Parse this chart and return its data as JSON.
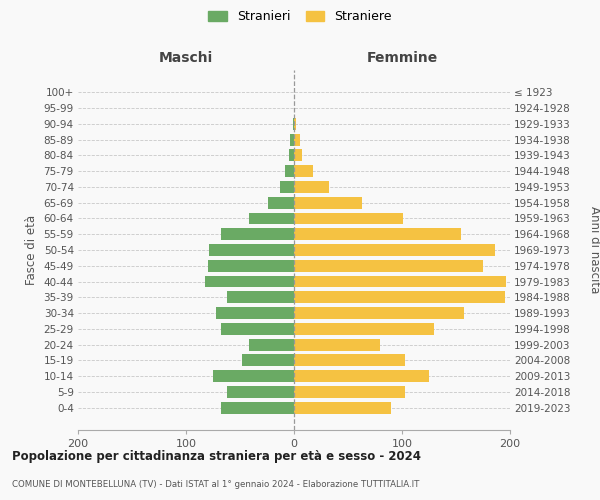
{
  "age_groups": [
    "0-4",
    "5-9",
    "10-14",
    "15-19",
    "20-24",
    "25-29",
    "30-34",
    "35-39",
    "40-44",
    "45-49",
    "50-54",
    "55-59",
    "60-64",
    "65-69",
    "70-74",
    "75-79",
    "80-84",
    "85-89",
    "90-94",
    "95-99",
    "100+"
  ],
  "birth_years": [
    "2019-2023",
    "2014-2018",
    "2009-2013",
    "2004-2008",
    "1999-2003",
    "1994-1998",
    "1989-1993",
    "1984-1988",
    "1979-1983",
    "1974-1978",
    "1969-1973",
    "1964-1968",
    "1959-1963",
    "1954-1958",
    "1949-1953",
    "1944-1948",
    "1939-1943",
    "1934-1938",
    "1929-1933",
    "1924-1928",
    "≤ 1923"
  ],
  "males": [
    68,
    62,
    75,
    48,
    42,
    68,
    72,
    62,
    82,
    80,
    79,
    68,
    42,
    24,
    13,
    8,
    5,
    4,
    1,
    0,
    0
  ],
  "females": [
    90,
    103,
    125,
    103,
    80,
    130,
    157,
    195,
    196,
    175,
    186,
    155,
    101,
    63,
    32,
    18,
    7,
    6,
    2,
    0,
    0
  ],
  "male_color": "#6aaa64",
  "female_color": "#f5c242",
  "background_color": "#f9f9f9",
  "grid_color": "#c8c8c8",
  "title": "Popolazione per cittadinanza straniera per età e sesso - 2024",
  "subtitle": "COMUNE DI MONTEBELLUNA (TV) - Dati ISTAT al 1° gennaio 2024 - Elaborazione TUTTITALIA.IT",
  "xlabel_left": "Maschi",
  "xlabel_right": "Femmine",
  "ylabel_left": "Fasce di età",
  "ylabel_right": "Anni di nascita",
  "legend_male": "Stranieri",
  "legend_female": "Straniere",
  "xlim": 200,
  "bar_height": 0.75
}
